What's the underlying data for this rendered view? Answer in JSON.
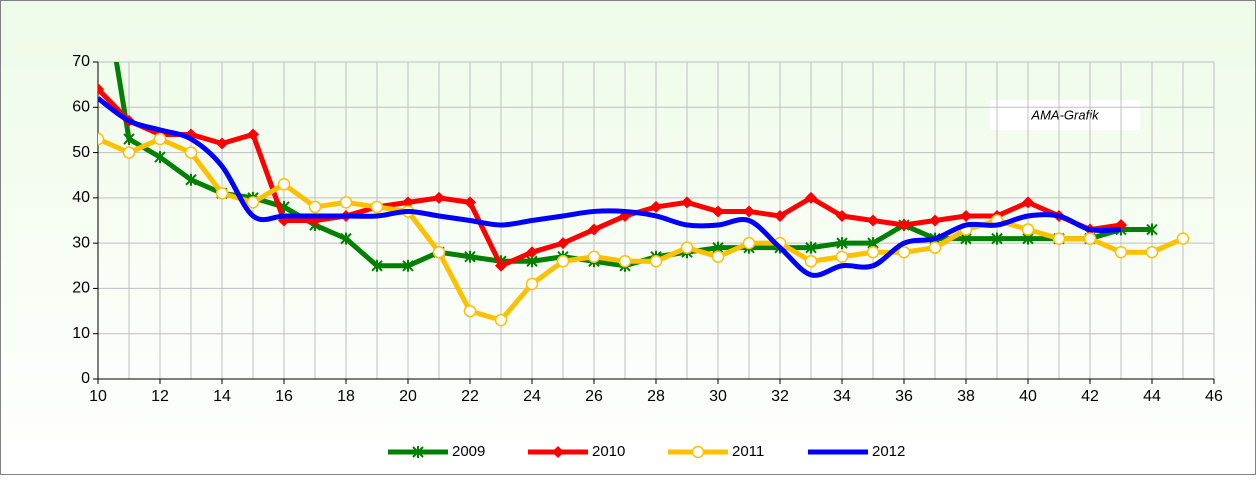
{
  "chart_data": {
    "type": "line",
    "annotation": "AMA-Grafik",
    "xlim": [
      10,
      46
    ],
    "xticks": [
      10,
      12,
      14,
      16,
      18,
      20,
      22,
      24,
      26,
      28,
      30,
      32,
      34,
      36,
      38,
      40,
      42,
      44,
      46
    ],
    "x_minor_step": 1,
    "ylim": [
      0,
      70
    ],
    "yticks": [
      0,
      10,
      20,
      30,
      40,
      50,
      60,
      70
    ],
    "grid": true,
    "legend": "bottom",
    "series": [
      {
        "name": "2009",
        "color": "#008000",
        "marker": "star",
        "smooth": false,
        "x": [
          10,
          11,
          12,
          13,
          14,
          15,
          16,
          17,
          18,
          19,
          20,
          21,
          22,
          23,
          24,
          25,
          26,
          27,
          28,
          29,
          30,
          31,
          32,
          33,
          34,
          35,
          36,
          37,
          38,
          39,
          40,
          41,
          42,
          43,
          44
        ],
        "values": [
          95,
          53,
          49,
          44,
          41,
          40,
          38,
          34,
          31,
          25,
          25,
          28,
          27,
          26,
          26,
          27,
          26,
          25,
          27,
          28,
          29,
          29,
          29,
          29,
          30,
          30,
          34,
          31,
          31,
          31,
          31,
          31,
          31,
          33,
          33
        ]
      },
      {
        "name": "2010",
        "color": "#ff0000",
        "marker": "diamond",
        "smooth": false,
        "x": [
          10,
          11,
          12,
          13,
          14,
          15,
          16,
          17,
          18,
          19,
          20,
          21,
          22,
          23,
          24,
          25,
          26,
          27,
          28,
          29,
          30,
          31,
          32,
          33,
          34,
          35,
          36,
          37,
          38,
          39,
          40,
          41,
          42,
          43
        ],
        "values": [
          64,
          57,
          54,
          54,
          52,
          54,
          35,
          35,
          36,
          38,
          39,
          40,
          39,
          25,
          28,
          30,
          33,
          36,
          38,
          39,
          37,
          37,
          36,
          40,
          36,
          35,
          34,
          35,
          36,
          36,
          39,
          36,
          33,
          34
        ]
      },
      {
        "name": "2011",
        "color": "#ffc000",
        "marker": "circle",
        "smooth": false,
        "x": [
          10,
          11,
          12,
          13,
          14,
          15,
          16,
          17,
          18,
          19,
          20,
          21,
          22,
          23,
          24,
          25,
          26,
          27,
          28,
          29,
          30,
          31,
          32,
          33,
          34,
          35,
          36,
          37,
          38,
          39,
          40,
          41,
          42,
          43,
          44,
          45
        ],
        "values": [
          53,
          50,
          53,
          50,
          41,
          39,
          43,
          38,
          39,
          38,
          37,
          28,
          15,
          13,
          21,
          26,
          27,
          26,
          26,
          29,
          27,
          30,
          30,
          26,
          27,
          28,
          28,
          29,
          33,
          35,
          33,
          31,
          31,
          28,
          28,
          31
        ]
      },
      {
        "name": "2012",
        "color": "#0000ff",
        "marker": "none",
        "smooth": true,
        "x": [
          10,
          11,
          12,
          13,
          14,
          15,
          16,
          17,
          18,
          19,
          20,
          21,
          22,
          23,
          24,
          25,
          26,
          27,
          28,
          29,
          30,
          31,
          32,
          33,
          34,
          35,
          36,
          37,
          38,
          39,
          40,
          41,
          42,
          43
        ],
        "values": [
          62,
          57,
          55,
          53,
          47,
          36,
          36,
          36,
          36,
          36,
          37,
          36,
          35,
          34,
          35,
          36,
          37,
          37,
          36,
          34,
          34,
          35,
          29,
          23,
          25,
          25,
          30,
          31,
          34,
          34,
          36,
          36,
          33,
          33
        ]
      }
    ]
  }
}
